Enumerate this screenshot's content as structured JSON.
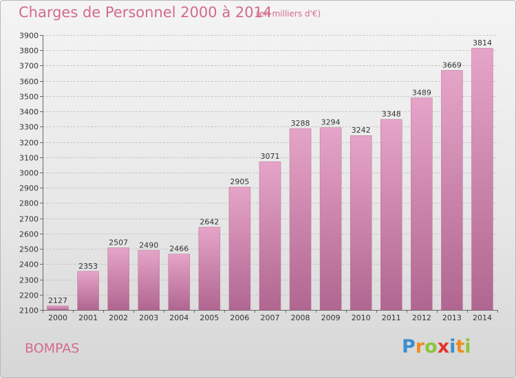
{
  "header": {
    "title": "Charges de Personnel 2000 à 2014",
    "subtitle": "(en milliers d'€)"
  },
  "footer": {
    "commune": "BOMPAS",
    "logo_text": "Proxiti",
    "logo_letters": [
      "P",
      "r",
      "o",
      "x",
      "i",
      "t",
      "i"
    ],
    "logo_colors": [
      "#3a8fd0",
      "#f08c1e",
      "#8cc43c",
      "#e5332a",
      "#3a8fd0",
      "#f08c1e",
      "#8cc43c"
    ]
  },
  "colors": {
    "bar_top": "#e6a4c8",
    "bar_bottom": "#b06690",
    "accent": "#d36a8a",
    "grid": "#c6c6c6"
  },
  "chart_data": {
    "type": "bar",
    "title": "Charges de Personnel 2000 à 2014",
    "subtitle": "(en milliers d'€)",
    "categories": [
      "2000",
      "2001",
      "2002",
      "2003",
      "2004",
      "2005",
      "2006",
      "2007",
      "2008",
      "2009",
      "2010",
      "2011",
      "2012",
      "2013",
      "2014"
    ],
    "values": [
      2127,
      2353,
      2507,
      2490,
      2466,
      2642,
      2905,
      3071,
      3288,
      3294,
      3242,
      3348,
      3489,
      3669,
      3814
    ],
    "ylim": [
      2100,
      3900
    ],
    "yticks": [
      2100,
      2200,
      2300,
      2400,
      2500,
      2600,
      2700,
      2800,
      2900,
      3000,
      3100,
      3200,
      3300,
      3400,
      3500,
      3600,
      3700,
      3800,
      3900
    ],
    "grid": true,
    "data_labels": true
  }
}
